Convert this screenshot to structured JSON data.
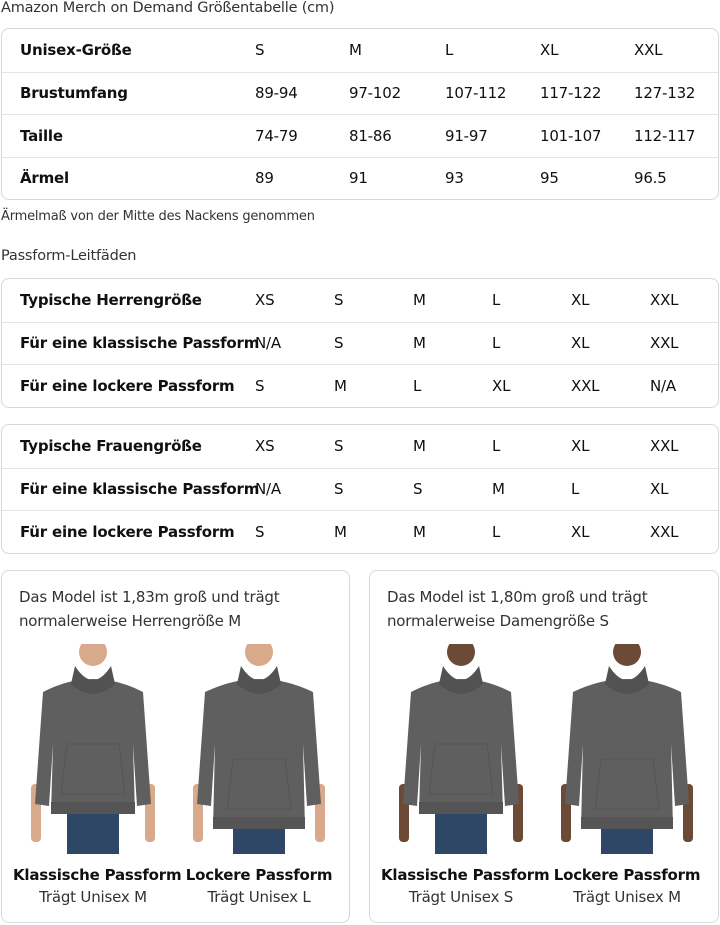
{
  "size_chart": {
    "title": "Amazon Merch on Demand Größentabelle (cm)",
    "rows": [
      {
        "label": "Unisex-Größe",
        "values": [
          "S",
          "M",
          "L",
          "XL",
          "XXL"
        ]
      },
      {
        "label": "Brustumfang",
        "values": [
          "89-94",
          "97-102",
          "107-112",
          "117-122",
          "127-132"
        ]
      },
      {
        "label": "Taille",
        "values": [
          "74-79",
          "81-86",
          "91-97",
          "101-107",
          "112-117"
        ]
      },
      {
        "label": "Ärmel",
        "values": [
          "89",
          "91",
          "93",
          "95",
          "96.5"
        ]
      }
    ],
    "note": "Ärmelmaß von der Mitte des Nackens genommen"
  },
  "fit_guides": {
    "title": "Passform-Leitfäden",
    "men": [
      {
        "label": "Typische Herrengröße",
        "values": [
          "XS",
          "S",
          "M",
          "L",
          "XL",
          "XXL"
        ]
      },
      {
        "label": "Für eine klassische Passform",
        "values": [
          "N/A",
          "S",
          "M",
          "L",
          "XL",
          "XXL"
        ]
      },
      {
        "label": "Für eine lockere Passform",
        "values": [
          "S",
          "M",
          "L",
          "XL",
          "XXL",
          "N/A"
        ]
      }
    ],
    "women": [
      {
        "label": "Typische Frauengröße",
        "values": [
          "XS",
          "S",
          "M",
          "L",
          "XL",
          "XXL"
        ]
      },
      {
        "label": "Für eine klassische Passform",
        "values": [
          "N/A",
          "S",
          "S",
          "M",
          "L",
          "XL"
        ]
      },
      {
        "label": "Für eine lockere Passform",
        "values": [
          "S",
          "M",
          "M",
          "L",
          "XL",
          "XXL"
        ]
      }
    ]
  },
  "models": [
    {
      "description": "Das Model ist 1,83m groß und trägt normalerweise Herrengröße M",
      "figures": [
        {
          "fit": "Klassische Passform",
          "wears": "Trägt Unisex M"
        },
        {
          "fit": "Lockere Passform",
          "wears": "Trägt Unisex L"
        }
      ]
    },
    {
      "description": "Das Model ist 1,80m groß und trägt normalerweise Damengröße S",
      "figures": [
        {
          "fit": "Klassische Passform",
          "wears": "Trägt Unisex S"
        },
        {
          "fit": "Lockere Passform",
          "wears": "Trägt Unisex M"
        }
      ]
    }
  ],
  "colors": {
    "hoodie": "#5f5f5f",
    "jeans": "#2f4766",
    "border": "#d5d9d9"
  }
}
